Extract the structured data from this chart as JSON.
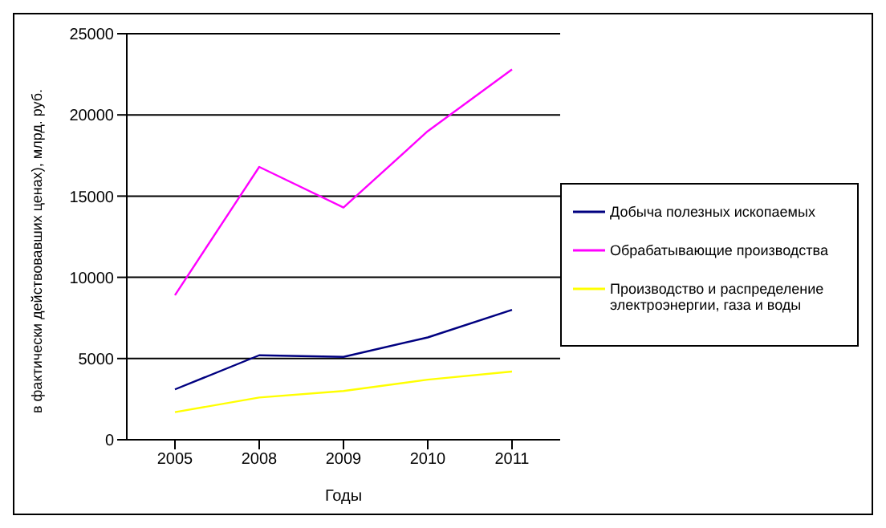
{
  "chart_data": {
    "type": "line",
    "xlabel": "Годы",
    "ylabel": "в фактически действовавших ценах), млрд. руб.",
    "categories": [
      "2005",
      "2008",
      "2009",
      "2010",
      "2011"
    ],
    "series": [
      {
        "name": "Добыча полезных ископаемых",
        "color": "#000080",
        "values": [
          3100,
          5200,
          5100,
          6300,
          8000
        ]
      },
      {
        "name": "Обрабатывающие производства",
        "color": "#ff00ff",
        "values": [
          8900,
          16800,
          14300,
          19000,
          22800
        ]
      },
      {
        "name": "Производство и распределение электроэнергии, газа и воды",
        "color": "#ffff00",
        "values": [
          1700,
          2600,
          3000,
          3700,
          4200
        ]
      }
    ],
    "ylim": [
      0,
      25000
    ],
    "yticks": [
      0,
      5000,
      10000,
      15000,
      20000,
      25000
    ],
    "grid": "y",
    "legend": "right",
    "marker": "none",
    "line_style": "solid"
  }
}
